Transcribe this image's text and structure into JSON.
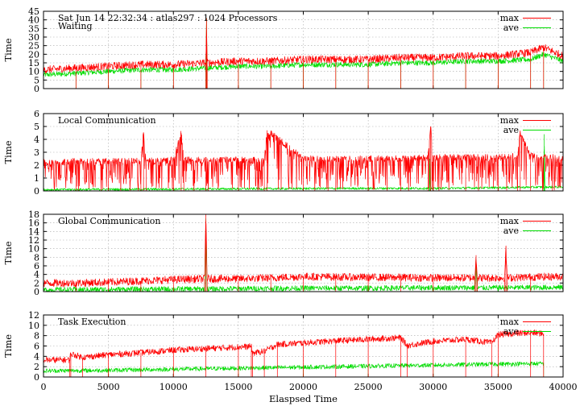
{
  "chart_data": [
    {
      "type": "line",
      "title": "Sat Jun 14 22:32:34 : atlas297 : 1024 Processors",
      "subtitle": "Waiting",
      "xlabel": "",
      "ylabel": "Time",
      "xlim": [
        0,
        40000
      ],
      "ylim": [
        0,
        45
      ],
      "yticks": [
        "0",
        "5",
        "10",
        "15",
        "20",
        "25",
        "30",
        "35",
        "40",
        "45"
      ],
      "xticks": [],
      "grid": true,
      "legend": "top-right",
      "series": [
        {
          "name": "max",
          "color": "#ff0000",
          "x": [
            0,
            2500,
            5000,
            7500,
            10000,
            12500,
            12550,
            12600,
            15000,
            17500,
            20000,
            22500,
            25000,
            27500,
            30000,
            32500,
            35000,
            37500,
            38500,
            40000
          ],
          "y": [
            11,
            12,
            13,
            14,
            14,
            15,
            41,
            15,
            16,
            16,
            17,
            17,
            17,
            18,
            18,
            19,
            19,
            21,
            24,
            19
          ]
        },
        {
          "name": "ave",
          "color": "#00dd00",
          "x": [
            0,
            2500,
            5000,
            7500,
            10000,
            12500,
            12550,
            12600,
            15000,
            17500,
            20000,
            22500,
            25000,
            27500,
            30000,
            32500,
            35000,
            37500,
            38500,
            40000
          ],
          "y": [
            8,
            9,
            10,
            11,
            11,
            12,
            41,
            12,
            13,
            13,
            14,
            14,
            14,
            15,
            15,
            16,
            16,
            17,
            20,
            16
          ]
        }
      ]
    },
    {
      "type": "line",
      "title": "Local Communication",
      "xlabel": "",
      "ylabel": "Time",
      "xlim": [
        0,
        40000
      ],
      "ylim": [
        0,
        6
      ],
      "yticks": [
        "0",
        "1",
        "2",
        "3",
        "4",
        "5",
        "6"
      ],
      "xticks": [],
      "grid": true,
      "legend": "top-right",
      "series": [
        {
          "name": "max",
          "color": "#ff0000",
          "x": [
            0,
            2500,
            5000,
            7500,
            7700,
            7900,
            10000,
            10600,
            10800,
            12500,
            15000,
            17000,
            17200,
            20000,
            22500,
            25000,
            27500,
            29600,
            29800,
            30000,
            32500,
            35000,
            36500,
            36700,
            37500,
            40000
          ],
          "y": [
            2.2,
            2.3,
            2.3,
            2.3,
            4.5,
            2.3,
            2.4,
            4.5,
            2.4,
            2.4,
            2.4,
            2.4,
            4.7,
            2.5,
            2.5,
            2.5,
            2.5,
            2.6,
            5,
            2.6,
            2.6,
            2.6,
            2.7,
            4.5,
            2.7,
            2.6
          ]
        },
        {
          "name": "ave",
          "color": "#00dd00",
          "x": [
            0,
            5000,
            10000,
            15000,
            20000,
            25000,
            29700,
            29750,
            29800,
            30000,
            35000,
            38500,
            38550,
            38600,
            40000
          ],
          "y": [
            0.1,
            0.12,
            0.14,
            0.16,
            0.18,
            0.2,
            0.2,
            2.5,
            0.2,
            0.2,
            0.25,
            0.3,
            4.4,
            0.3,
            0.3
          ]
        }
      ]
    },
    {
      "type": "line",
      "title": "Global Communication",
      "xlabel": "",
      "ylabel": "Time",
      "xlim": [
        0,
        40000
      ],
      "ylim": [
        0,
        18
      ],
      "yticks": [
        "0",
        "2",
        "4",
        "6",
        "8",
        "10",
        "12",
        "14",
        "16",
        "18"
      ],
      "xticks": [],
      "grid": true,
      "legend": "top-right",
      "series": [
        {
          "name": "max",
          "color": "#ff0000",
          "x": [
            0,
            2500,
            5000,
            7500,
            10000,
            12400,
            12500,
            12600,
            15000,
            17500,
            20000,
            22500,
            25000,
            27500,
            30000,
            33200,
            33300,
            33400,
            35500,
            35600,
            35700,
            37500,
            40000
          ],
          "y": [
            2,
            2,
            2.2,
            2.5,
            2.8,
            3,
            18,
            3,
            3,
            3.2,
            3.5,
            3.4,
            3.3,
            3.3,
            3.2,
            3.2,
            8.5,
            3.2,
            3.2,
            10,
            3.2,
            3.4,
            3.5
          ]
        },
        {
          "name": "ave",
          "color": "#00dd00",
          "x": [
            0,
            5000,
            10000,
            12400,
            12500,
            12600,
            15000,
            20000,
            25000,
            30000,
            33200,
            33300,
            33400,
            35000,
            40000
          ],
          "y": [
            0.4,
            0.5,
            0.6,
            0.6,
            17,
            0.6,
            0.7,
            0.8,
            0.8,
            0.9,
            0.9,
            7.5,
            0.9,
            0.9,
            1
          ]
        }
      ]
    },
    {
      "type": "line",
      "title": "Task Execution",
      "xlabel": "Elaspsed Time",
      "ylabel": "Time",
      "xlim": [
        0,
        40000
      ],
      "ylim": [
        0,
        12
      ],
      "yticks": [
        "0",
        "2",
        "4",
        "6",
        "8",
        "10",
        "12"
      ],
      "xticks": [
        "0",
        "5000",
        "10000",
        "15000",
        "20000",
        "25000",
        "30000",
        "35000",
        "40000"
      ],
      "grid": true,
      "legend": "top-right",
      "series": [
        {
          "name": "max",
          "color": "#ff0000",
          "x": [
            0,
            2000,
            2100,
            3000,
            5000,
            7500,
            10000,
            12500,
            15000,
            16000,
            16100,
            17000,
            18000,
            20000,
            22500,
            25000,
            27500,
            28000,
            30000,
            32500,
            34500,
            35000,
            37500,
            38500
          ],
          "y": [
            3.3,
            3.3,
            4.5,
            3.8,
            4.3,
            4.7,
            5.2,
            5.5,
            5.8,
            5.9,
            4.6,
            5.0,
            6.3,
            6.6,
            7.0,
            7.3,
            7.6,
            6.1,
            6.9,
            7.3,
            6.6,
            8.2,
            8.6,
            8.4
          ]
        },
        {
          "name": "ave",
          "color": "#00dd00",
          "x": [
            0,
            5000,
            10000,
            15000,
            20000,
            25000,
            30000,
            35000,
            38500
          ],
          "y": [
            1.2,
            1.3,
            1.5,
            1.7,
            1.9,
            2.1,
            2.3,
            2.5,
            2.6
          ]
        }
      ]
    }
  ]
}
